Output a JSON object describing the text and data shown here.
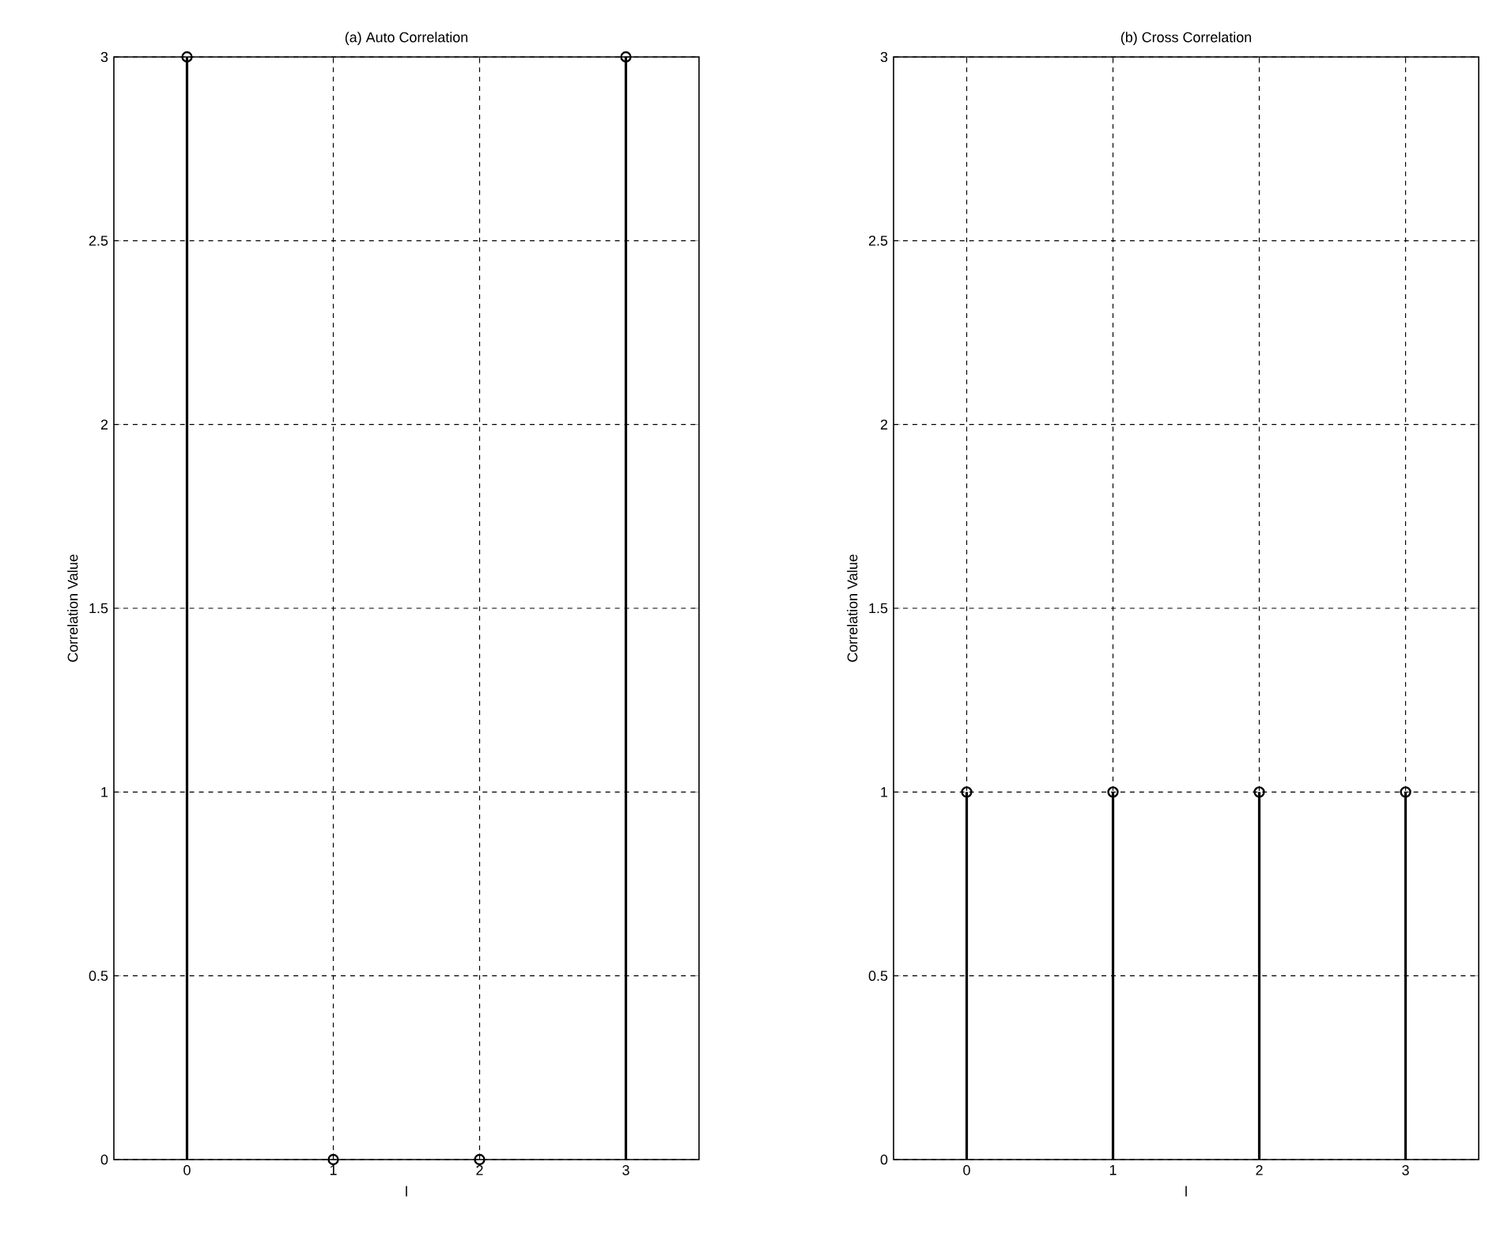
{
  "chart_data": [
    {
      "type": "lollipop",
      "title": "(a) Auto Correlation",
      "xlabel": "l",
      "ylabel": "Correlation Value",
      "x": [
        0,
        1,
        2,
        3
      ],
      "series": [
        {
          "color": "#000000",
          "values": [
            3,
            0,
            0,
            3
          ]
        }
      ],
      "xlim": [
        -0.5,
        3.5
      ],
      "xticks": [
        0,
        1,
        2,
        3
      ],
      "ylim": [
        0,
        3
      ],
      "yticks": [
        0,
        0.5,
        1,
        1.5,
        2,
        2.5,
        3
      ],
      "grid": true,
      "marker": "circle"
    },
    {
      "type": "lollipop",
      "title": "(b) Cross Correlation",
      "xlabel": "l",
      "ylabel": "Correlation Value",
      "x": [
        0,
        1,
        2,
        3
      ],
      "series": [
        {
          "color": "#000000",
          "values": [
            1,
            1,
            1,
            1
          ]
        }
      ],
      "xlim": [
        -0.5,
        3.5
      ],
      "xticks": [
        0,
        1,
        2,
        3
      ],
      "ylim": [
        0,
        3
      ],
      "yticks": [
        0,
        0.5,
        1,
        1.5,
        2,
        2.5,
        3
      ],
      "grid": true,
      "marker": "circle"
    }
  ]
}
